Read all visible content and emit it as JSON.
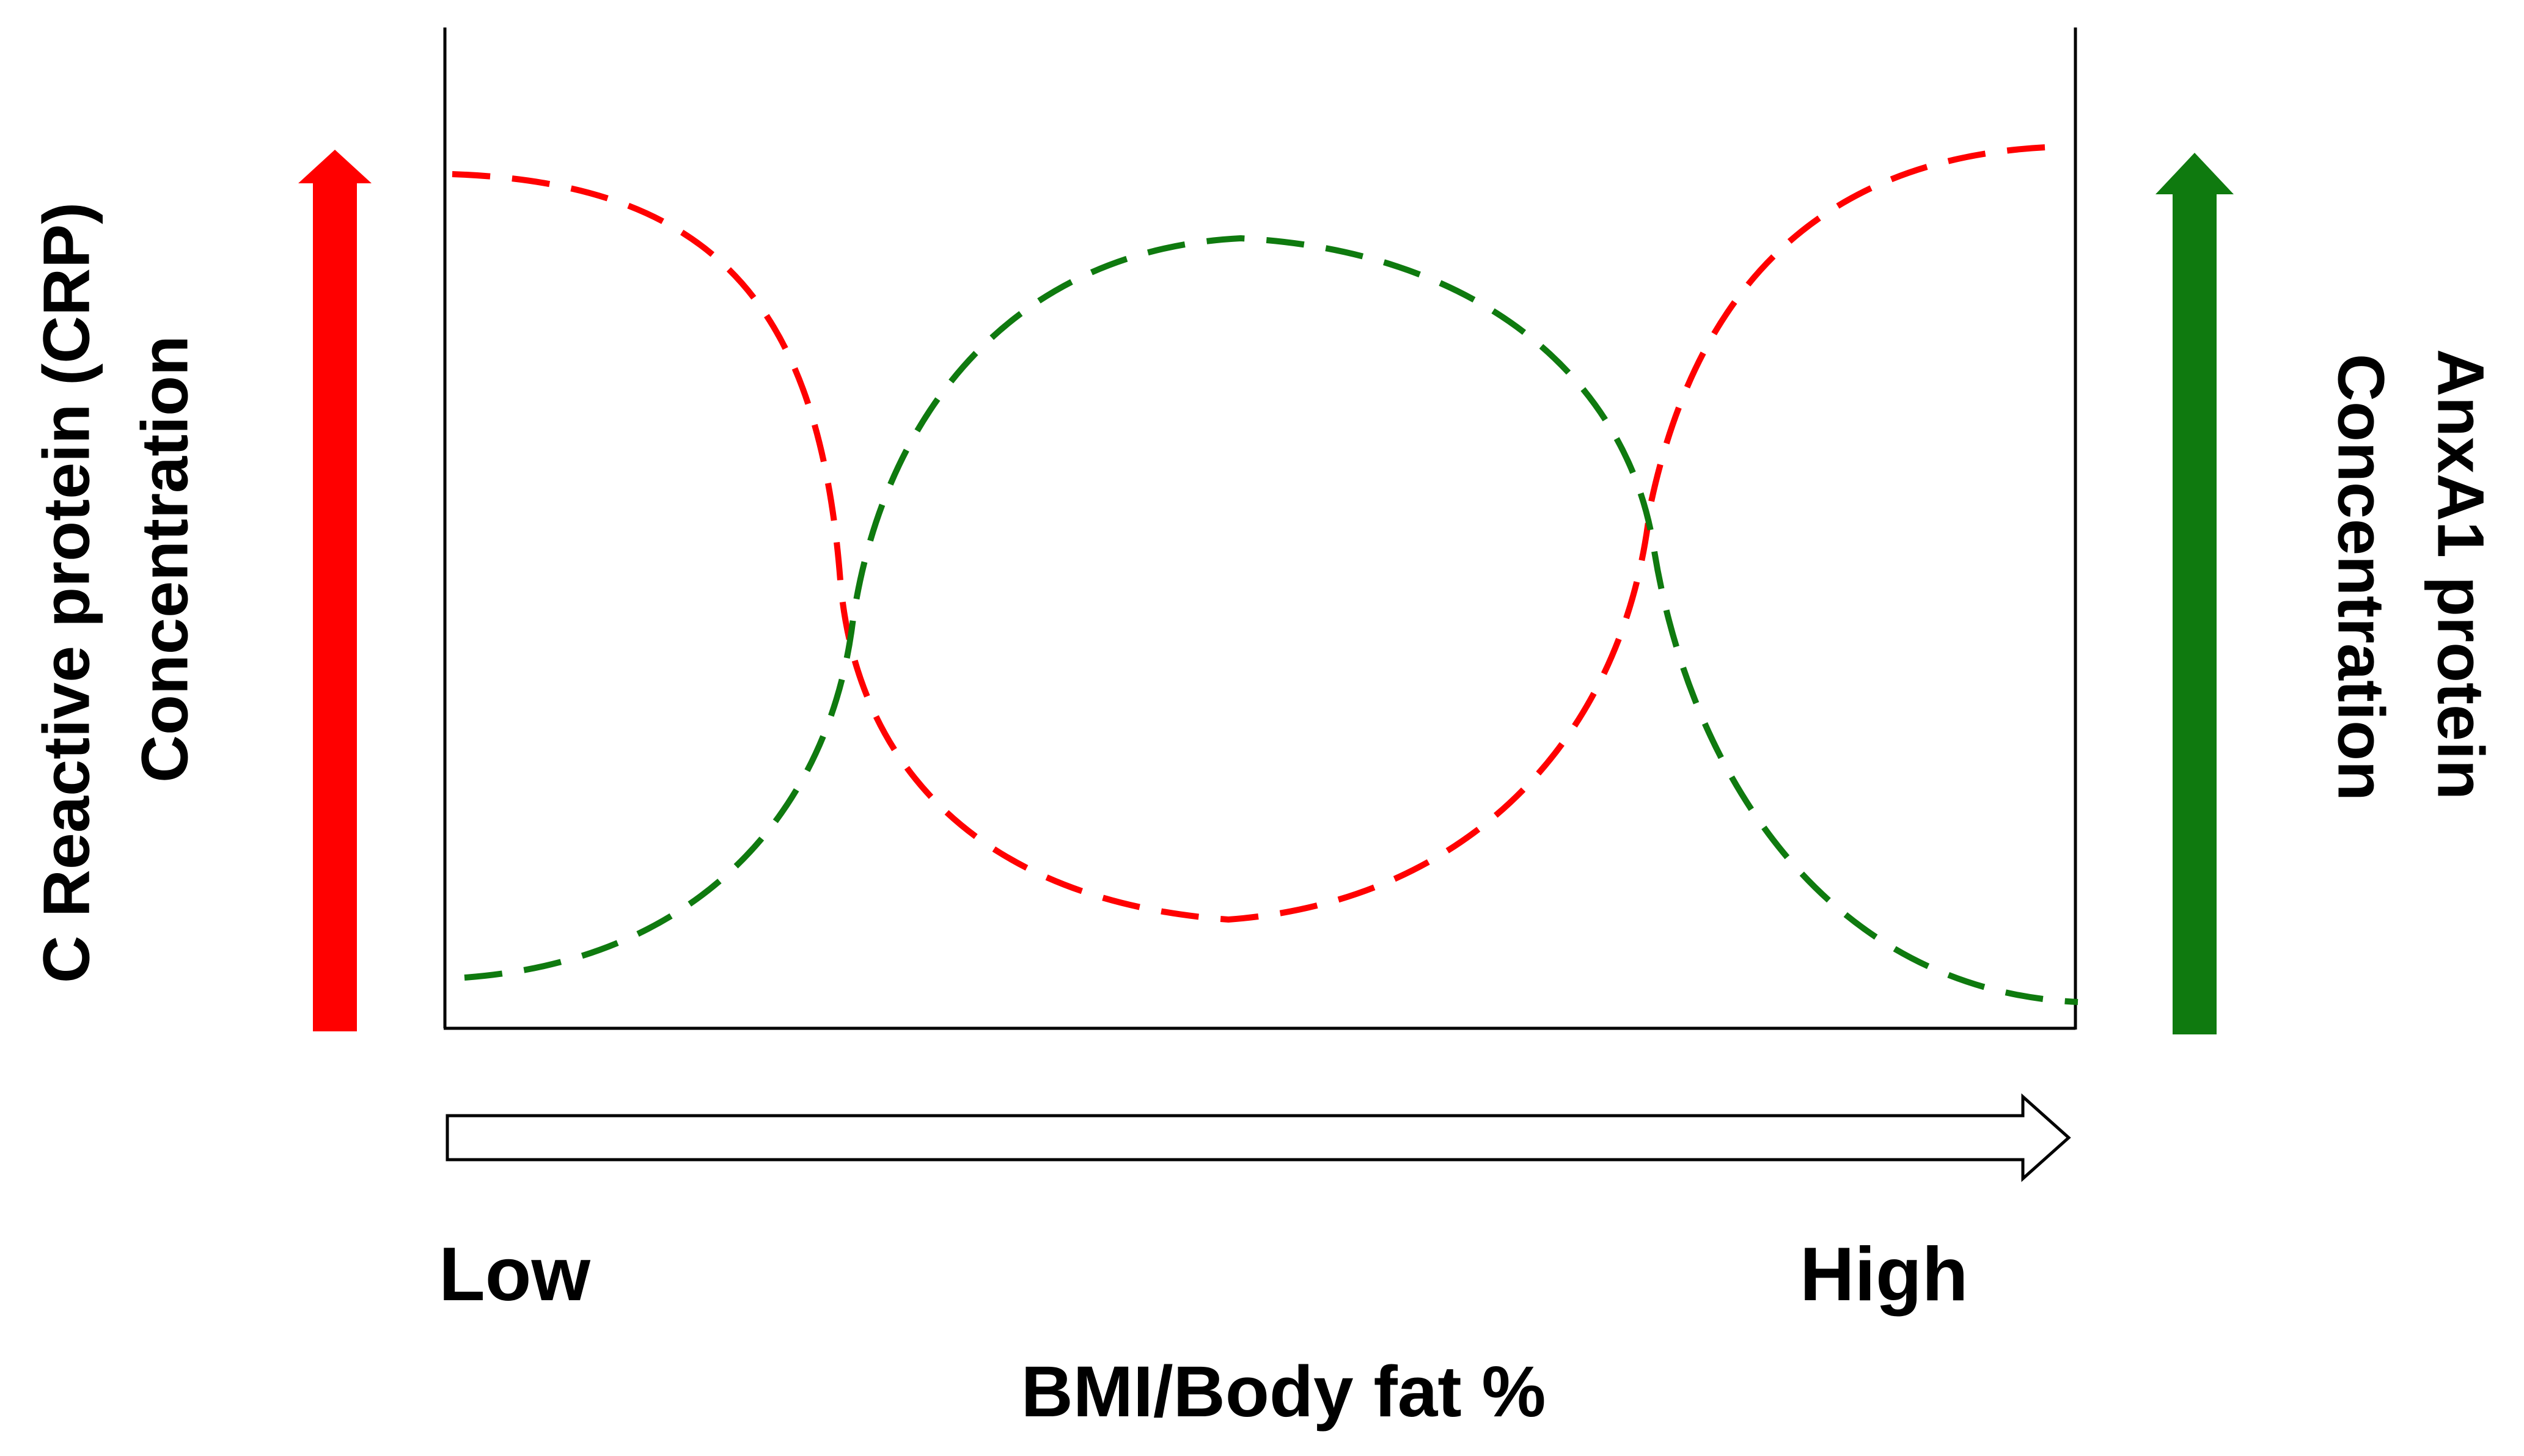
{
  "left_axis": {
    "line1": "C Reactive protein (CRP)",
    "line2": "Concentration",
    "arrow_color": "#ff0000"
  },
  "right_axis": {
    "line1": "AnxA1 protein",
    "line2": "Concentration",
    "arrow_color": "#0f7a0f"
  },
  "x_axis": {
    "low_label": "Low",
    "high_label": "High",
    "title": "BMI/Body fat %"
  },
  "curves": [
    {
      "name": "crp-curve",
      "color": "#ff0000",
      "shape": "high-low-high"
    },
    {
      "name": "anxa1-curve",
      "color": "#0f7a0f",
      "shape": "low-high-low"
    }
  ]
}
